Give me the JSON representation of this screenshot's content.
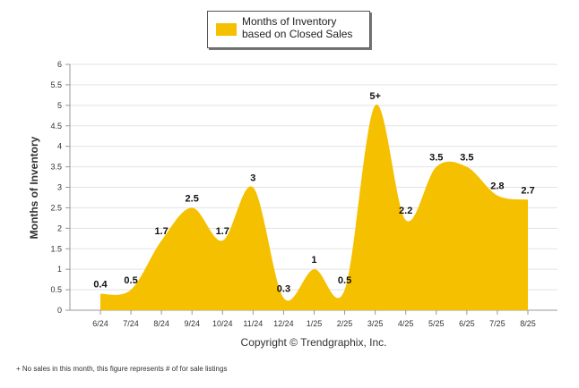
{
  "chart_data": {
    "type": "area",
    "categories": [
      "6/24",
      "7/24",
      "8/24",
      "9/24",
      "10/24",
      "11/24",
      "12/24",
      "1/25",
      "2/25",
      "3/25",
      "4/25",
      "5/25",
      "6/25",
      "7/25",
      "8/25"
    ],
    "series": [
      {
        "name": "Months of Inventory based on Closed Sales",
        "values": [
          0.4,
          0.5,
          1.7,
          2.5,
          1.7,
          3,
          0.3,
          1,
          0.5,
          5,
          2.2,
          3.5,
          3.5,
          2.8,
          2.7
        ],
        "data_labels": [
          "0.4",
          "0.5",
          "1.7",
          "2.5",
          "1.7",
          "3",
          "0.3",
          "1",
          "0.5",
          "5+",
          "2.2",
          "3.5",
          "3.5",
          "2.8",
          "2.7"
        ],
        "color": "#f5c000"
      }
    ],
    "ylabel": "Months of Inventory",
    "xlabel": "",
    "ylim": [
      0,
      6
    ],
    "yticks": [
      "0",
      "0.5",
      "1",
      "1.5",
      "2",
      "2.5",
      "3",
      "3.5",
      "4",
      "4.5",
      "5",
      "5.5",
      "6"
    ],
    "grid": true,
    "legend_position": "top-center"
  },
  "copyright": "Copyright © Trendgraphix, Inc.",
  "footnote": "+  No sales in this month, this figure represents # of for sale listings"
}
